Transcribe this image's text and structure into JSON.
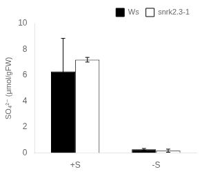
{
  "chart_data": {
    "type": "bar",
    "categories": [
      "+S",
      "-S"
    ],
    "series": [
      {
        "name": "Ws",
        "color": "black",
        "values": [
          6.3,
          0.28
        ],
        "errors": [
          2.55,
          0.07
        ]
      },
      {
        "name": "snrk2.3-1",
        "color": "white",
        "values": [
          7.2,
          0.18
        ],
        "errors": [
          0.18,
          0.12
        ]
      }
    ],
    "ylabel": "SO₄²⁻ (μmol/gFW)",
    "ylim": [
      0,
      10
    ],
    "yticks": [
      0,
      2,
      4,
      6,
      8,
      10
    ],
    "grid": false,
    "legend": "upper right"
  }
}
